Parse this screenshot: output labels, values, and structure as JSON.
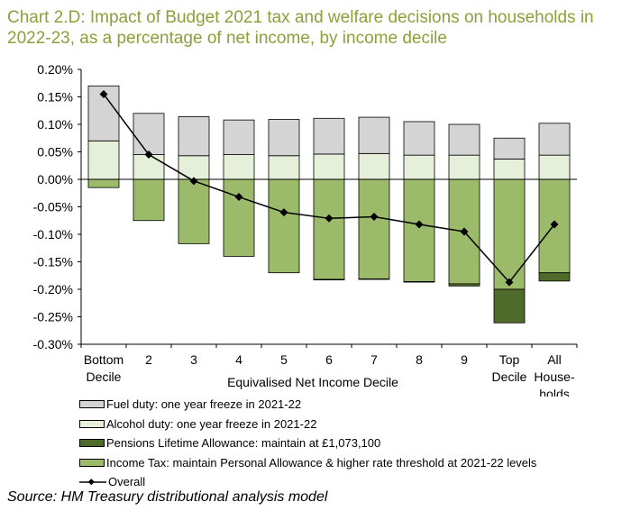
{
  "title": {
    "line1": "Chart 2.D: Impact of Budget 2021 tax and welfare decisions on households in",
    "line2": "2022-23, as a percentage of net income, by income decile"
  },
  "source": "Source:  HM Treasury distributional analysis model",
  "legend": [
    {
      "label": "Fuel duty: one year freeze in 2021-22",
      "color": "#d4d4d4"
    },
    {
      "label": "Alcohol duty: one year freeze in 2021-22",
      "color": "#e6efd9"
    },
    {
      "label": "Pensions Lifetime Allowance: maintain at £1,073,100",
      "color": "#4f6b2a"
    },
    {
      "label": "Income Tax: maintain Personal Allowance & higher rate threshold at 2021-22 levels",
      "color": "#9bbb6a"
    },
    {
      "label": "Overall",
      "color": "#000000"
    }
  ],
  "chart_data": {
    "type": "bar",
    "stacked": true,
    "xlabel": "Equivalised Net Income Decile",
    "ylabel": "",
    "ylim": [
      -0.3,
      0.2
    ],
    "yticks": [
      "0.20%",
      "0.15%",
      "0.10%",
      "0.05%",
      "0.00%",
      "-0.05%",
      "-0.10%",
      "-0.15%",
      "-0.20%",
      "-0.25%",
      "-0.30%"
    ],
    "ytick_values": [
      0.2,
      0.15,
      0.1,
      0.05,
      0.0,
      -0.05,
      -0.1,
      -0.15,
      -0.2,
      -0.25,
      -0.3
    ],
    "categories": [
      [
        "Bottom",
        "Decile"
      ],
      [
        "2"
      ],
      [
        "3"
      ],
      [
        "4"
      ],
      [
        "5"
      ],
      [
        "6"
      ],
      [
        "7"
      ],
      [
        "8"
      ],
      [
        "9"
      ],
      [
        "Top",
        "Decile"
      ],
      [
        "All",
        "House-",
        "holds"
      ]
    ],
    "series": [
      {
        "name": "Alcohol duty: one year freeze in 2021-22",
        "color": "#e6efd9",
        "values": [
          0.07,
          0.045,
          0.043,
          0.045,
          0.043,
          0.046,
          0.047,
          0.044,
          0.044,
          0.037,
          0.044
        ]
      },
      {
        "name": "Fuel duty: one year freeze in 2021-22",
        "color": "#d4d4d4",
        "values": [
          0.1,
          0.075,
          0.071,
          0.063,
          0.066,
          0.065,
          0.066,
          0.061,
          0.056,
          0.038,
          0.058
        ]
      },
      {
        "name": "Income Tax: maintain Personal Allowance & higher rate threshold at 2021-22 levels",
        "color": "#9bbb6a",
        "values": [
          -0.015,
          -0.075,
          -0.117,
          -0.14,
          -0.17,
          -0.182,
          -0.181,
          -0.186,
          -0.19,
          -0.2,
          -0.17
        ]
      },
      {
        "name": "Pensions Lifetime Allowance: maintain at £1,073,100",
        "color": "#4f6b2a",
        "values": [
          0.0,
          0.0,
          0.0,
          0.0,
          0.0,
          -0.001,
          -0.001,
          -0.001,
          -0.004,
          -0.061,
          -0.015
        ]
      }
    ],
    "overall": {
      "name": "Overall",
      "values": [
        0.155,
        0.045,
        -0.003,
        -0.032,
        -0.06,
        -0.071,
        -0.068,
        -0.082,
        -0.095,
        -0.187,
        -0.082
      ]
    }
  }
}
